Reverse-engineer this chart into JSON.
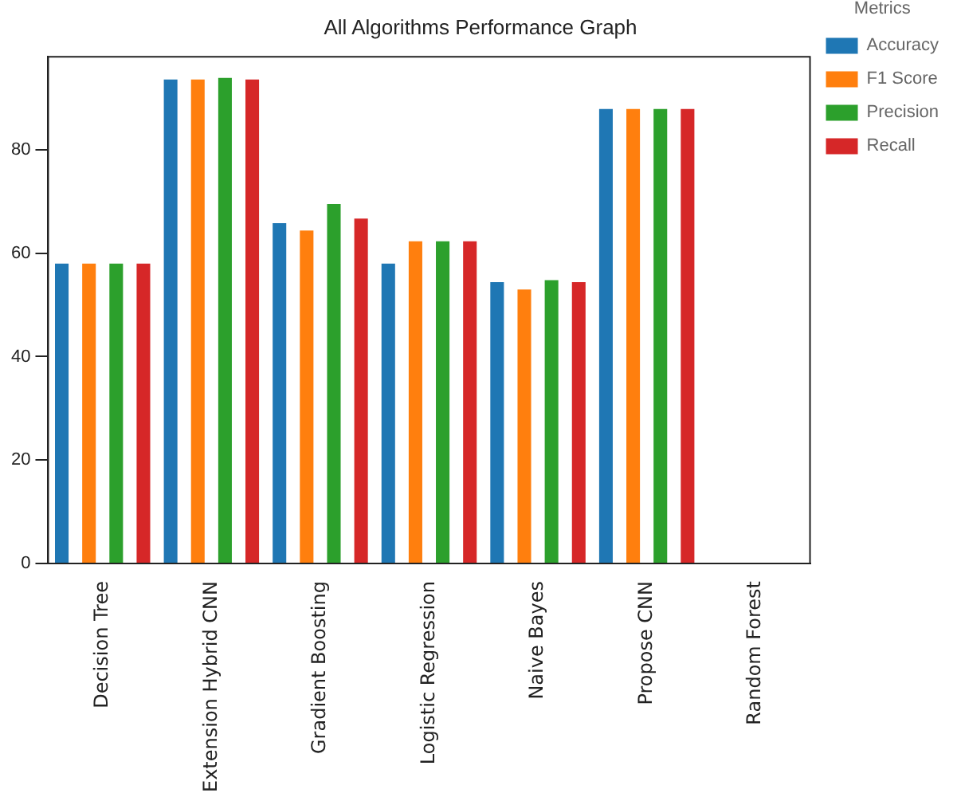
{
  "chart_data": {
    "type": "bar",
    "title": "All Algorithms Performance Graph",
    "categories": [
      "Decision Tree",
      "Extension Hybrid CNN",
      "Gradient Boosting",
      "Logistic Regression",
      "Naive Bayes",
      "Propose CNN",
      "Random Forest"
    ],
    "series": [
      {
        "name": "Accuracy",
        "color": "#1f77b4",
        "values": [
          58,
          93.6,
          65.8,
          58,
          54.4,
          87.9,
          null
        ]
      },
      {
        "name": "F1 Score",
        "color": "#ff7f0e",
        "values": [
          58,
          93.6,
          64.4,
          62.3,
          53,
          87.9,
          null
        ]
      },
      {
        "name": "Precision",
        "color": "#2ca02c",
        "values": [
          58,
          93.9,
          69.5,
          62.3,
          54.8,
          87.9,
          null
        ]
      },
      {
        "name": "Recall",
        "color": "#d62728",
        "values": [
          58,
          93.6,
          66.7,
          62.3,
          54.4,
          87.9,
          null
        ]
      }
    ],
    "legend_title": "Metrics",
    "legend": "top right",
    "ylim": [
      0,
      98
    ],
    "yticks": [
      0,
      20,
      40,
      60,
      80
    ],
    "grid": false
  }
}
